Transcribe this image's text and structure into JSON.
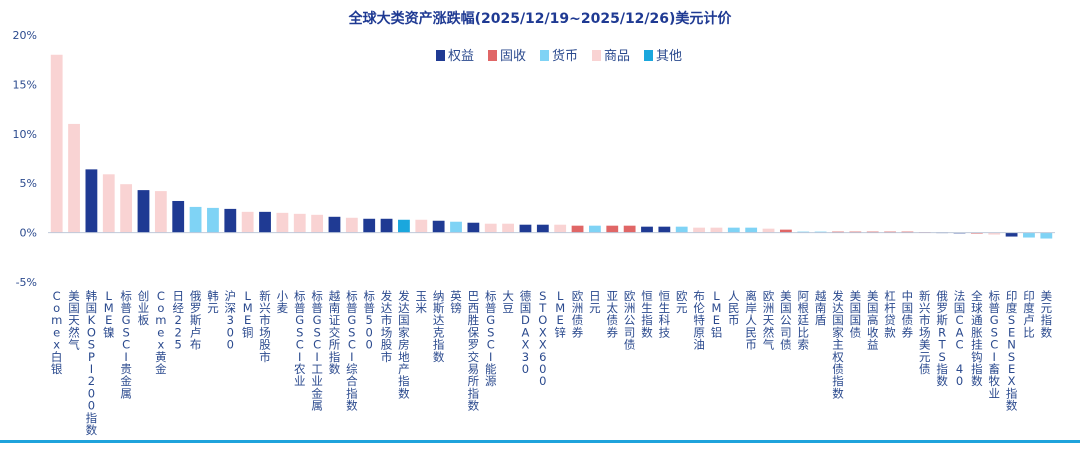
{
  "colors": {
    "title": "#1F3A93",
    "axis_text": "#2B4A8E",
    "category_text": "#2B4A8E",
    "rule": "#1FA3DC"
  },
  "chart_data": {
    "type": "bar",
    "title": "全球大类资产涨跌幅(2025/12/19~2025/12/26)美元计价",
    "xlabel": "",
    "ylabel": "",
    "ylim": [
      -0.05,
      0.2
    ],
    "yticks": [
      -0.05,
      0,
      0.05,
      0.1,
      0.15,
      0.2
    ],
    "ytick_labels": [
      "-5%",
      "0%",
      "5%",
      "10%",
      "15%",
      "20%"
    ],
    "grid": false,
    "legend_placement": "top-center",
    "legend": [
      {
        "key": "equity",
        "label": "权益",
        "color": "#1F3A93"
      },
      {
        "key": "fixed",
        "label": "固收",
        "color": "#E06666"
      },
      {
        "key": "currency",
        "label": "货币",
        "color": "#7FD3F5"
      },
      {
        "key": "commodity",
        "label": "商品",
        "color": "#F9D3D3"
      },
      {
        "key": "other",
        "label": "其他",
        "color": "#1AA7DD"
      }
    ],
    "bars": [
      {
        "label": "Comex白银",
        "value": 0.18,
        "group": "commodity"
      },
      {
        "label": "美国天然气",
        "value": 0.11,
        "group": "commodity"
      },
      {
        "label": "韩国KOSPI200指数",
        "value": 0.064,
        "group": "equity"
      },
      {
        "label": "LME镍",
        "value": 0.059,
        "group": "commodity"
      },
      {
        "label": "标普GSCI贵金属",
        "value": 0.049,
        "group": "commodity"
      },
      {
        "label": "创业板",
        "value": 0.043,
        "group": "equity"
      },
      {
        "label": "Comex黄金",
        "value": 0.042,
        "group": "commodity"
      },
      {
        "label": "日经225",
        "value": 0.032,
        "group": "equity"
      },
      {
        "label": "俄罗斯卢布",
        "value": 0.026,
        "group": "currency"
      },
      {
        "label": "韩元",
        "value": 0.025,
        "group": "currency"
      },
      {
        "label": "沪深300",
        "value": 0.024,
        "group": "equity"
      },
      {
        "label": "LME铜",
        "value": 0.021,
        "group": "commodity"
      },
      {
        "label": "新兴市场股市",
        "value": 0.021,
        "group": "equity"
      },
      {
        "label": "小麦",
        "value": 0.02,
        "group": "commodity"
      },
      {
        "label": "标普GSCI农业",
        "value": 0.019,
        "group": "commodity"
      },
      {
        "label": "标普GSCI工业金属",
        "value": 0.018,
        "group": "commodity"
      },
      {
        "label": "越南证交所指数",
        "value": 0.016,
        "group": "equity"
      },
      {
        "label": "标普GSCI综合指数",
        "value": 0.015,
        "group": "commodity"
      },
      {
        "label": "标普500",
        "value": 0.014,
        "group": "equity"
      },
      {
        "label": "发达市场股市",
        "value": 0.014,
        "group": "equity"
      },
      {
        "label": "发达国家房地产指数",
        "value": 0.013,
        "group": "other"
      },
      {
        "label": "玉米",
        "value": 0.013,
        "group": "commodity"
      },
      {
        "label": "纳斯达克指数",
        "value": 0.012,
        "group": "equity"
      },
      {
        "label": "英镑",
        "value": 0.011,
        "group": "currency"
      },
      {
        "label": "巴西胜保罗交易所指数",
        "value": 0.01,
        "group": "equity"
      },
      {
        "label": "标普GSCI能源",
        "value": 0.009,
        "group": "commodity"
      },
      {
        "label": "大豆",
        "value": 0.009,
        "group": "commodity"
      },
      {
        "label": "德国DAX30",
        "value": 0.008,
        "group": "equity"
      },
      {
        "label": "STOXX600",
        "value": 0.008,
        "group": "equity"
      },
      {
        "label": "LME锌",
        "value": 0.008,
        "group": "commodity"
      },
      {
        "label": "欧洲债券",
        "value": 0.007,
        "group": "fixed"
      },
      {
        "label": "日元",
        "value": 0.007,
        "group": "currency"
      },
      {
        "label": "亚太债券",
        "value": 0.007,
        "group": "fixed"
      },
      {
        "label": "欧洲公司债",
        "value": 0.007,
        "group": "fixed"
      },
      {
        "label": "恒生指数",
        "value": 0.006,
        "group": "equity"
      },
      {
        "label": "恒生科技",
        "value": 0.006,
        "group": "equity"
      },
      {
        "label": "欧元",
        "value": 0.006,
        "group": "currency"
      },
      {
        "label": "布伦特原油",
        "value": 0.005,
        "group": "commodity"
      },
      {
        "label": "LME铝",
        "value": 0.005,
        "group": "commodity"
      },
      {
        "label": "人民币",
        "value": 0.005,
        "group": "currency"
      },
      {
        "label": "离岸人民币",
        "value": 0.005,
        "group": "currency"
      },
      {
        "label": "欧洲天然气",
        "value": 0.004,
        "group": "commodity"
      },
      {
        "label": "美国公司债",
        "value": 0.003,
        "group": "fixed"
      },
      {
        "label": "阿根廷比索",
        "value": 0.001,
        "group": "currency"
      },
      {
        "label": "越南盾",
        "value": 0.001,
        "group": "currency"
      },
      {
        "label": "发达国家主权债指数",
        "value": 0.001,
        "group": "fixed"
      },
      {
        "label": "美国国债",
        "value": 0.001,
        "group": "fixed"
      },
      {
        "label": "美国高收益",
        "value": 0.001,
        "group": "fixed"
      },
      {
        "label": "杠杆贷款",
        "value": 0.001,
        "group": "fixed"
      },
      {
        "label": "中国债券",
        "value": 0.001,
        "group": "fixed"
      },
      {
        "label": "新兴市场美元债",
        "value": 0.0005,
        "group": "fixed"
      },
      {
        "label": "俄罗斯RTS指数",
        "value": 0.0003,
        "group": "equity"
      },
      {
        "label": "法国CAC 40",
        "value": -0.0005,
        "group": "equity"
      },
      {
        "label": "全球通胀挂钩指数",
        "value": -0.001,
        "group": "fixed"
      },
      {
        "label": "标普GSCI畜牧业",
        "value": -0.002,
        "group": "commodity"
      },
      {
        "label": "印度SENSEX指数",
        "value": -0.004,
        "group": "equity"
      },
      {
        "label": "印度卢比",
        "value": -0.005,
        "group": "currency"
      },
      {
        "label": "美元指数",
        "value": -0.006,
        "group": "currency"
      }
    ]
  }
}
